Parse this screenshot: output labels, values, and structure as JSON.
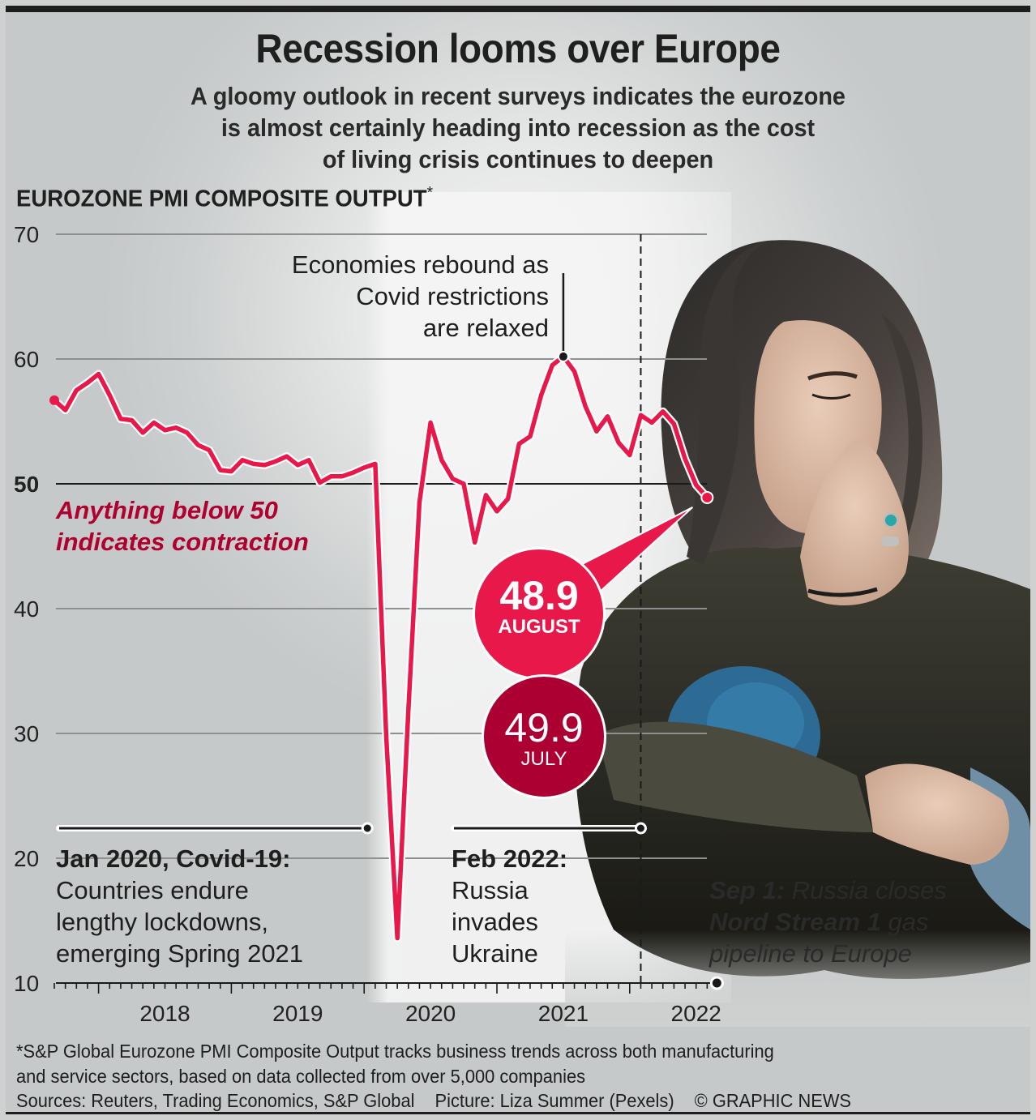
{
  "header": {
    "title": "Recession looms over Europe",
    "subtitle_lines": [
      "A gloomy outlook in recent surveys indicates the eurozone",
      "is almost certainly heading into recession as the cost",
      "of living crisis continues to deepen"
    ]
  },
  "colors": {
    "line": "#e8194a",
    "august_bubble": "#e8194a",
    "july_bubble": "#ab0031",
    "contraction_text": "#b0002f"
  },
  "chart_data": {
    "type": "line",
    "title": "EUROZONE PMI COMPOSITE OUTPUT",
    "title_suffix": "*",
    "xlabel": "",
    "ylabel": "",
    "ylim": [
      10,
      70
    ],
    "yticks": [
      70,
      60,
      50,
      40,
      30,
      20,
      10
    ],
    "ytick_bold": [
      50
    ],
    "reference_line": 50,
    "x_start": "2017-09",
    "x_end": "2022-08",
    "xticks": [
      {
        "label": "2018",
        "month_index": 4
      },
      {
        "label": "2019",
        "month_index": 16
      },
      {
        "label": "2020",
        "month_index": 28
      },
      {
        "label": "2021",
        "month_index": 40
      },
      {
        "label": "2022",
        "month_index": 52
      }
    ],
    "grid": true,
    "series": [
      {
        "name": "Eurozone PMI Composite Output",
        "start": "2017-09",
        "frequency": "monthly",
        "values": [
          56.7,
          55.9,
          57.5,
          58.1,
          58.8,
          57.1,
          55.2,
          55.1,
          54.1,
          54.9,
          54.3,
          54.5,
          54.1,
          53.1,
          52.7,
          51.1,
          51.0,
          51.9,
          51.6,
          51.5,
          51.8,
          52.2,
          51.5,
          51.9,
          50.1,
          50.6,
          50.6,
          50.9,
          51.3,
          51.6,
          29.7,
          13.6,
          31.9,
          48.5,
          54.9,
          51.9,
          50.4,
          50.0,
          45.3,
          49.1,
          47.8,
          48.8,
          53.2,
          53.8,
          57.1,
          59.5,
          60.2,
          59.0,
          56.2,
          54.2,
          55.4,
          53.3,
          52.3,
          55.5,
          54.9,
          55.8,
          54.8,
          52.0,
          49.9,
          48.9
        ]
      }
    ],
    "annotations": {
      "rebound": {
        "lines": [
          "Economies rebound as",
          "Covid restrictions",
          "are relaxed"
        ],
        "month_index": 46
      },
      "contraction": {
        "lines": [
          "Anything below 50",
          "indicates contraction"
        ]
      },
      "covid": {
        "title": "Jan 2020, Covid-19:",
        "lines": [
          "Countries endure",
          "lengthy lockdowns,",
          "emerging Spring 2021"
        ],
        "month_index": 28
      },
      "ukraine": {
        "title": "Feb 2022:",
        "lines": [
          "Russia",
          "invades",
          "Ukraine"
        ],
        "month_index": 53
      },
      "nordstream": {
        "line1_bold": "Sep 1:",
        "line1_rest": " Russia closes",
        "line2_bold": "Nord Stream 1",
        "line2_rest": " gas",
        "line3": "pipeline to Europe"
      }
    },
    "callouts": [
      {
        "value": "48.9",
        "label": "AUGUST"
      },
      {
        "value": "49.9",
        "label": "JULY"
      }
    ]
  },
  "footer": {
    "footnote_lines": [
      "*S&P Global Eurozone PMI Composite Output tracks business trends across both manufacturing",
      "and service sectors, based on data collected from over 5,000 companies"
    ],
    "sources": "Sources: Reuters, Trading Economics, S&P Global",
    "picture_credit": "Picture: Liza Summer (Pexels)",
    "copyright": "© GRAPHIC NEWS"
  }
}
